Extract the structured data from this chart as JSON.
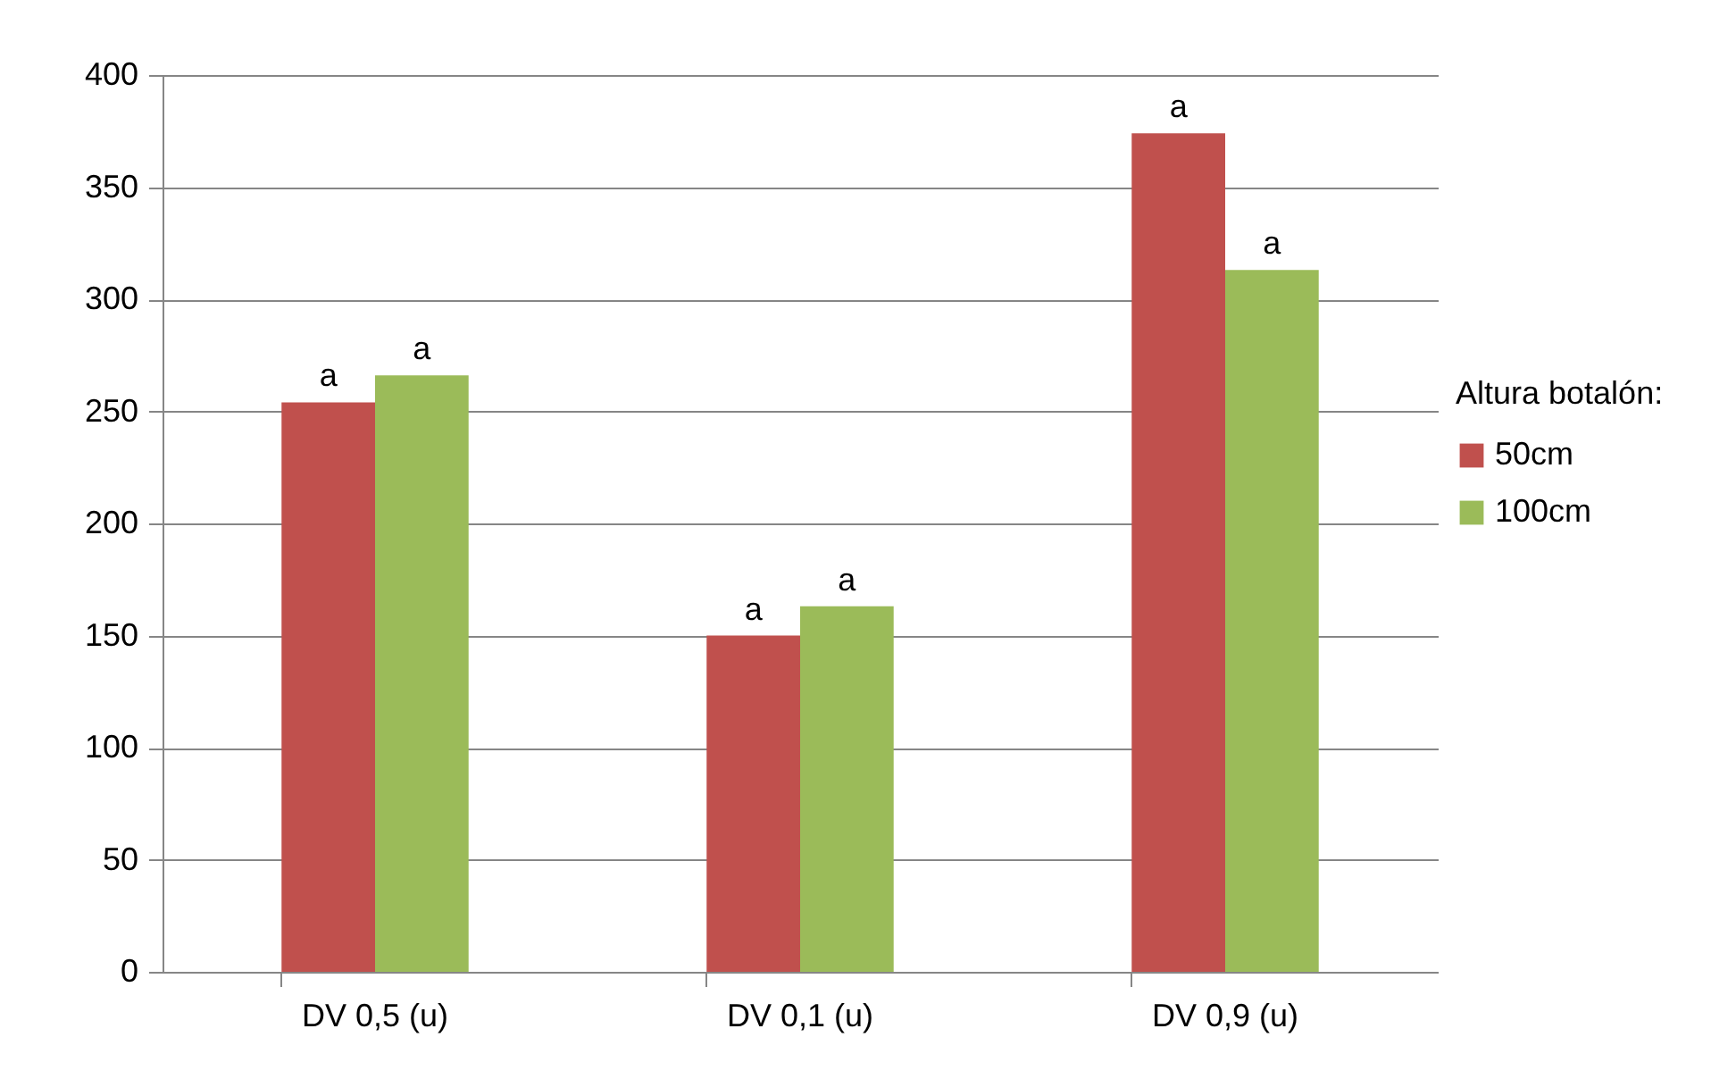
{
  "chart_data": {
    "type": "bar",
    "categories": [
      "DV 0,5 (u)",
      "DV 0,1 (u)",
      "DV 0,9 (u)"
    ],
    "series": [
      {
        "name": "50cm",
        "color": "#c0504d",
        "values": [
          254,
          150,
          374
        ],
        "value_labels": [
          "a",
          "a",
          "a"
        ]
      },
      {
        "name": "100cm",
        "color": "#9bbb59",
        "values": [
          266,
          163,
          313
        ],
        "value_labels": [
          "a",
          "a",
          "a"
        ]
      }
    ],
    "legend_title": "Altura botalón:",
    "legend": "right",
    "grid": "y",
    "ylim": [
      0,
      400
    ],
    "yticks": [
      0,
      50,
      100,
      150,
      200,
      250,
      300,
      350,
      400
    ]
  }
}
